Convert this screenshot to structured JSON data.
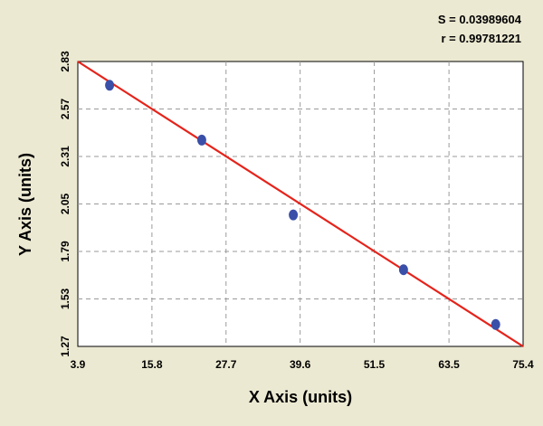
{
  "stats": {
    "s_text": "S = 0.03989604",
    "r_text": "r = 0.99781221"
  },
  "chart_data": {
    "type": "scatter",
    "xlabel": "X Axis (units)",
    "ylabel": "Y Axis (units)",
    "xlim": [
      3.9,
      75.4
    ],
    "ylim": [
      1.27,
      2.83
    ],
    "x_ticks": [
      "3.9",
      "15.8",
      "27.7",
      "39.6",
      "51.5",
      "63.5",
      "75.4"
    ],
    "y_ticks": [
      "1.27",
      "1.53",
      "1.79",
      "2.05",
      "2.31",
      "2.57",
      "2.83"
    ],
    "grid": true,
    "series": [
      {
        "kind": "points",
        "x": [
          9.0,
          23.8,
          38.5,
          56.2,
          71.0
        ],
        "y": [
          2.7,
          2.4,
          1.99,
          1.69,
          1.39
        ],
        "color": "#3a4fa8"
      },
      {
        "kind": "fit_line",
        "x": [
          3.9,
          75.4
        ],
        "y": [
          2.83,
          1.27
        ],
        "color": "#e5231b"
      }
    ]
  }
}
